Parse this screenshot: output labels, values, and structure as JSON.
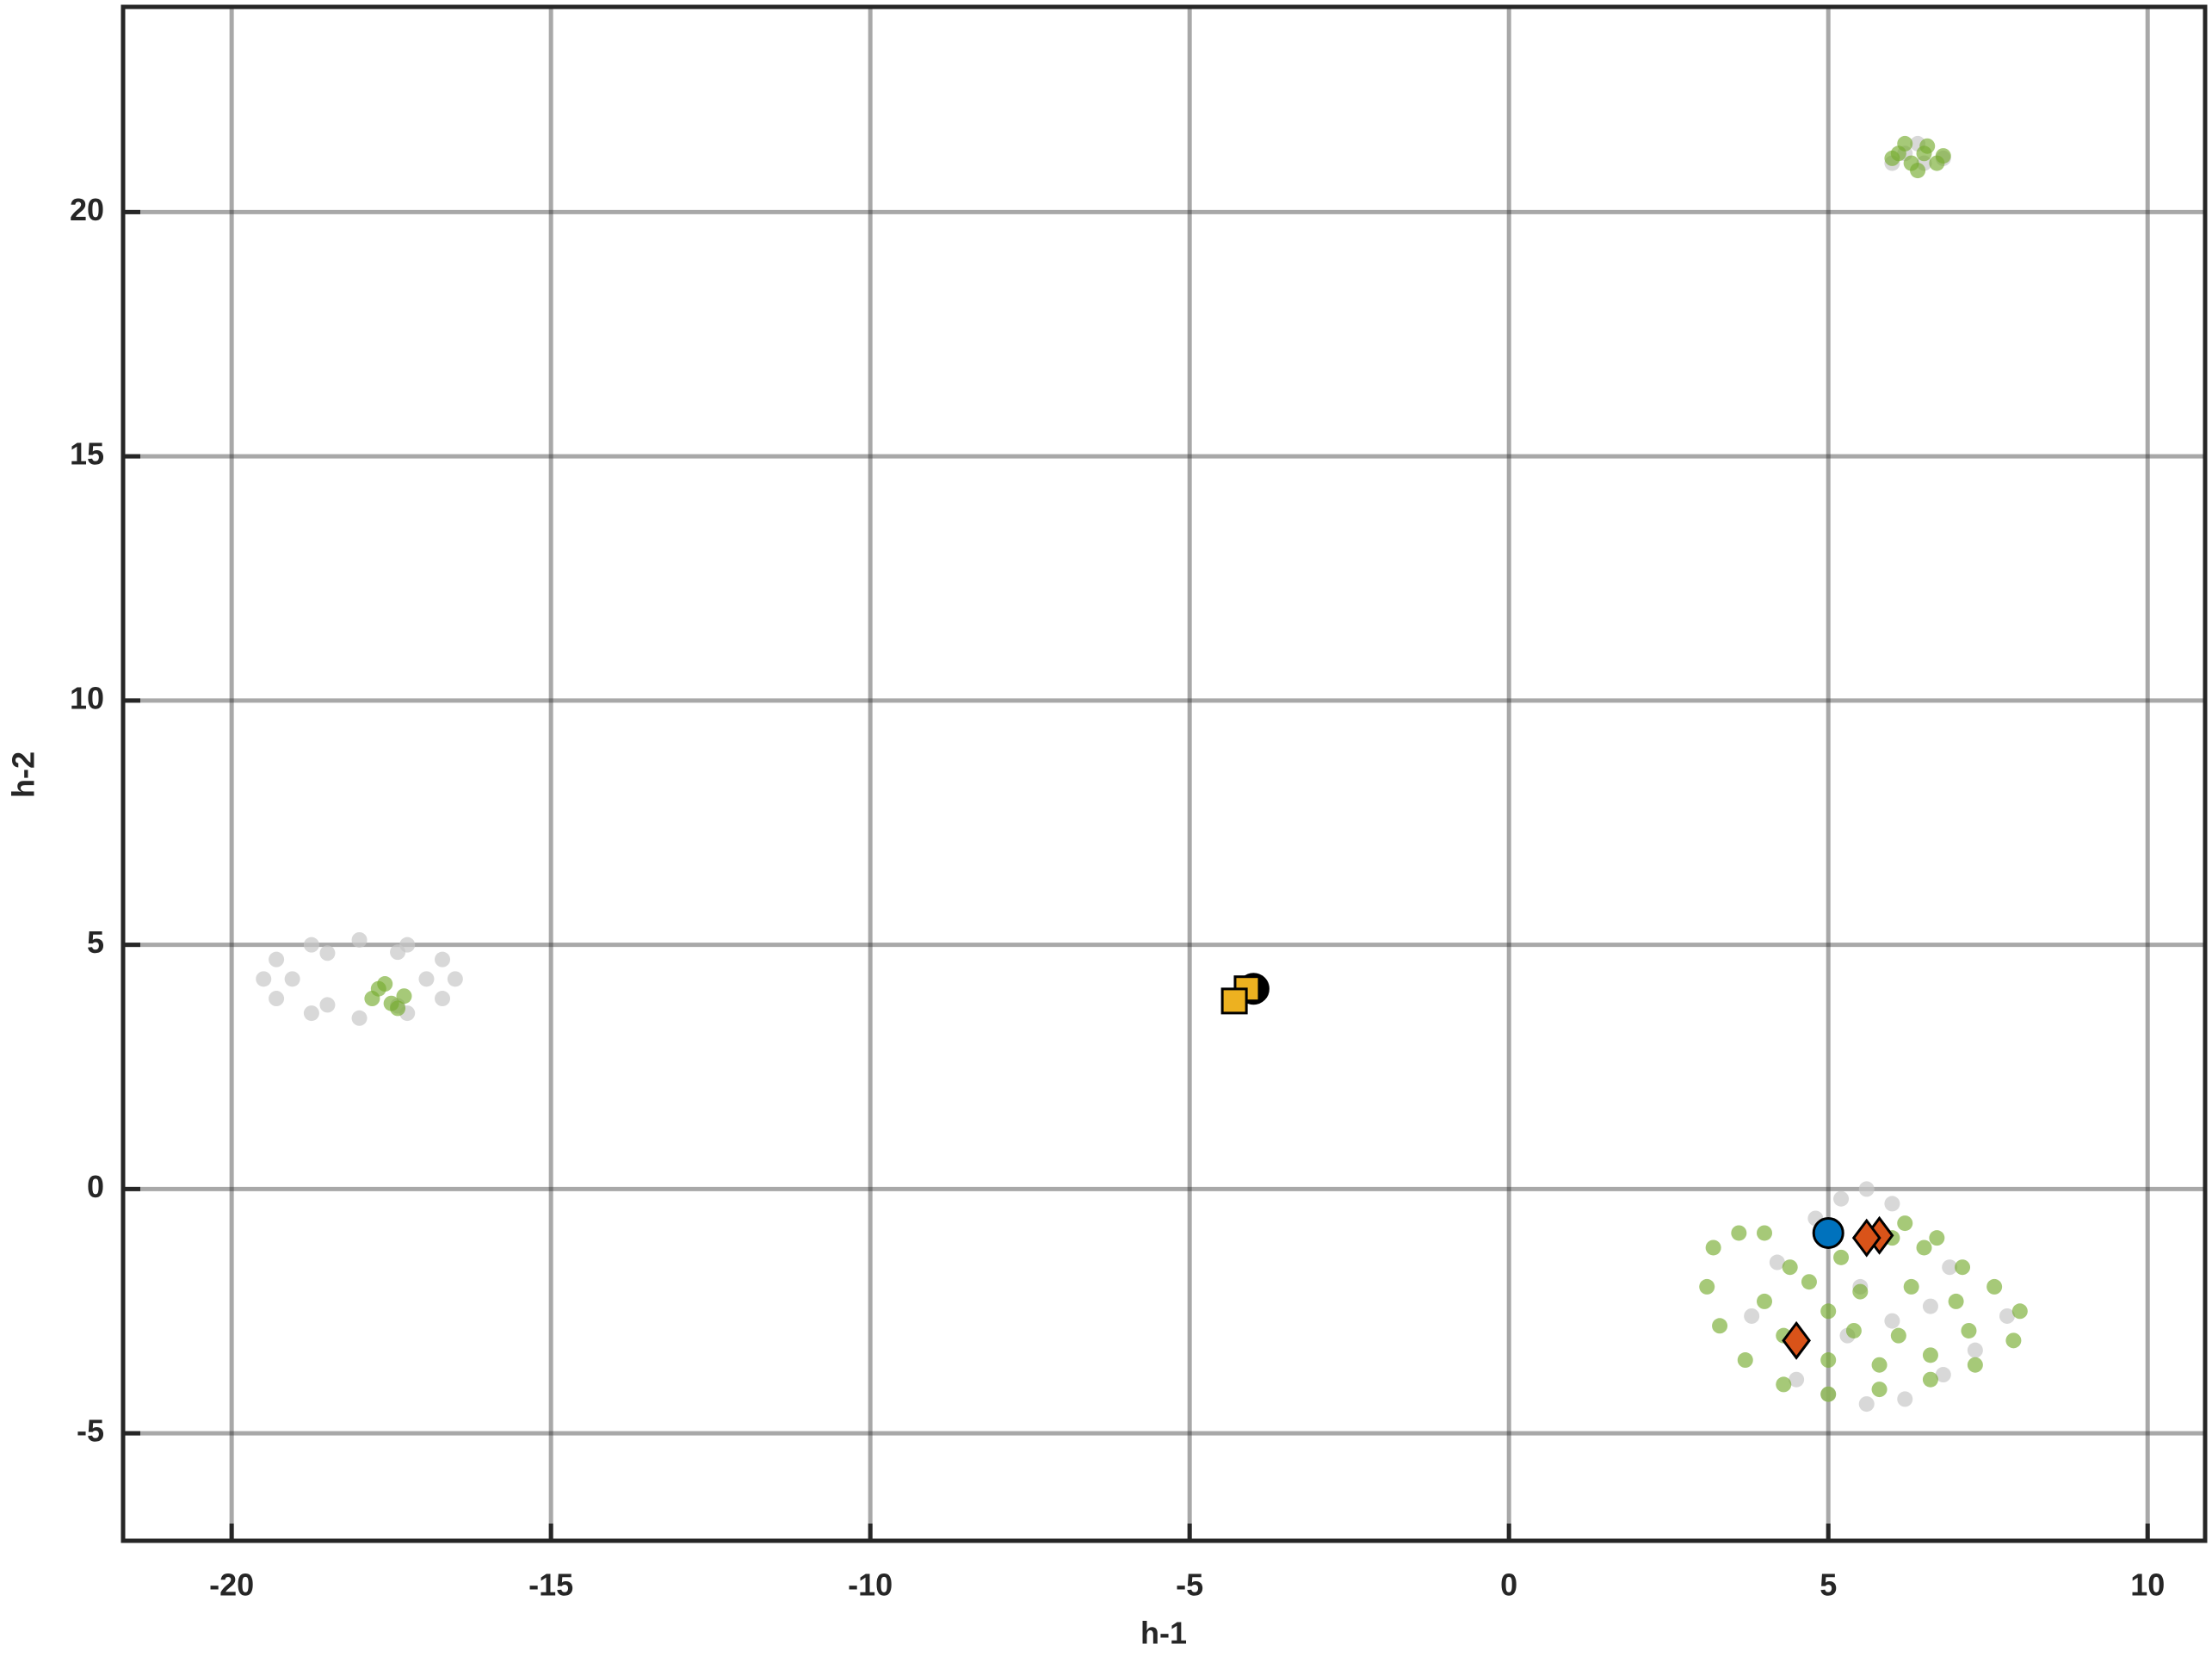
{
  "chart_data": {
    "type": "scatter",
    "x_label": "h-1",
    "y_label": "h-2",
    "xlim": [
      -21.7,
      10.9
    ],
    "ylim": [
      -7.2,
      24.2
    ],
    "xticks": [
      -20,
      -15,
      -10,
      -5,
      0,
      5,
      10
    ],
    "yticks": [
      -5,
      0,
      5,
      10,
      15,
      20
    ],
    "grid": true,
    "series": [
      {
        "color": "#c8c8c8",
        "marker": "dot",
        "opacity": 0.7,
        "x": [
          -16.5,
          -16.7,
          -17.25,
          -18,
          -18.75,
          -19.3,
          -19.5,
          -19.3,
          -18.75,
          -18,
          -17.25,
          -16.7,
          -16.95,
          -17.4,
          -18.5,
          -19.05,
          -18.5,
          -17.4,
          6.2,
          6.5,
          6.8,
          6.0,
          6.4,
          5.2,
          5.6,
          6.0,
          5.0,
          5.6,
          6.2,
          4.5,
          6.8,
          7.3,
          7.8,
          4.2,
          3.8,
          5.5,
          6.0,
          6.6,
          5.3,
          6.9,
          4.8
        ],
        "values": [
          4.3,
          4.7,
          5.0,
          5.1,
          5.0,
          4.7,
          4.3,
          3.9,
          3.6,
          3.5,
          3.6,
          3.9,
          4.3,
          4.85,
          4.83,
          4.3,
          3.77,
          3.75,
          21.2,
          21.0,
          21.1,
          21.0,
          21.4,
          -0.2,
          0,
          -0.3,
          -4.2,
          -4.4,
          -4.3,
          -3.9,
          -3.8,
          -3.3,
          -2.6,
          -1.5,
          -2.6,
          -2.0,
          -2.7,
          -2.4,
          -3.0,
          -1.6,
          -0.6
        ]
      },
      {
        "color": "#77ac30",
        "marker": "dot",
        "opacity": 0.65,
        "x": [
          -17.8,
          -17.5,
          -17.3,
          -17.7,
          -17.6,
          -17.4,
          6.1,
          6.3,
          6.5,
          6.7,
          6.4,
          6.2,
          6.55,
          6.0,
          6.8,
          3.2,
          3.1,
          3.3,
          3.7,
          4.3,
          5.0,
          5.8,
          6.6,
          7.3,
          7.9,
          8.0,
          7.6,
          7.1,
          6.5,
          6.0,
          4.0,
          3.6,
          4.4,
          4.0,
          4.3,
          5.0,
          5.8,
          6.6,
          7.2,
          7.0,
          6.3,
          5.5,
          5.0,
          5.4,
          6.1,
          4.7,
          5.2,
          6.2,
          6.7
        ],
        "values": [
          3.9,
          3.8,
          3.95,
          4.1,
          4.2,
          3.7,
          21.2,
          21.0,
          21.2,
          21.0,
          20.85,
          21.4,
          21.35,
          21.1,
          21.15,
          -1.2,
          -2.0,
          -2.8,
          -3.5,
          -4.0,
          -4.2,
          -4.1,
          -3.9,
          -3.6,
          -3.1,
          -2.5,
          -2.0,
          -1.6,
          -1.2,
          -1.0,
          -0.9,
          -0.9,
          -1.6,
          -2.3,
          -3.0,
          -3.5,
          -3.6,
          -3.4,
          -2.9,
          -2.3,
          -2.0,
          -2.1,
          -2.5,
          -2.9,
          -3.0,
          -1.9,
          -1.4,
          -0.7,
          -1.0
        ]
      },
      {
        "color": "#000000",
        "marker": "circle",
        "x": [
          -4.0
        ],
        "values": [
          4.1
        ]
      },
      {
        "color": "#edb120",
        "marker": "square",
        "x": [
          -4.1,
          -4.3
        ],
        "values": [
          4.1,
          3.85
        ]
      },
      {
        "color": "#0072bd",
        "marker": "circle",
        "x": [
          5.0
        ],
        "values": [
          -0.9
        ]
      },
      {
        "color": "#d95319",
        "marker": "diamond",
        "x": [
          5.8,
          5.6,
          4.5
        ],
        "values": [
          -0.95,
          -1.0,
          -3.1
        ]
      }
    ]
  }
}
